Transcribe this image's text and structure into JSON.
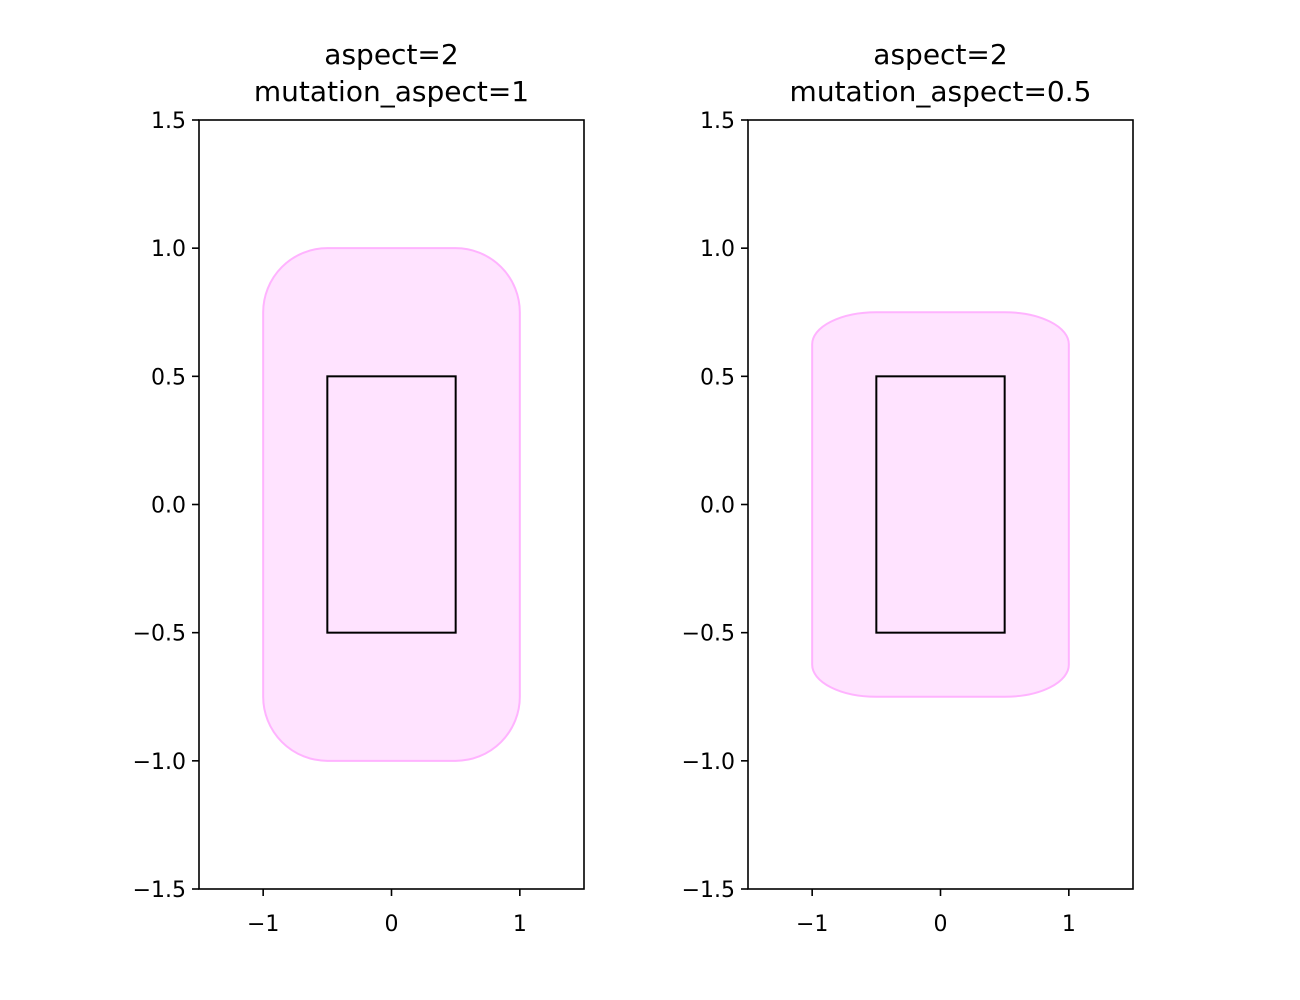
{
  "chart_data": [
    {
      "type": "diagram",
      "title": "aspect=2\nmutation_aspect=1",
      "title_lines": [
        "aspect=2",
        "mutation_aspect=1"
      ],
      "xlim": [
        -1.5,
        1.5
      ],
      "ylim": [
        -1.5,
        1.5
      ],
      "xticks": [
        -1,
        0,
        1
      ],
      "xtick_labels": [
        "−1",
        "0",
        "1"
      ],
      "yticks": [
        -1.5,
        -1.0,
        -0.5,
        0.0,
        0.5,
        1.0,
        1.5
      ],
      "ytick_labels": [
        "−1.5",
        "−1.0",
        "−0.5",
        "0.0",
        "0.5",
        "1.0",
        "1.5"
      ],
      "inner_rect": {
        "x0": -0.5,
        "y0": -0.5,
        "x1": 0.5,
        "y1": 0.5,
        "edgecolor": "#000000"
      },
      "fancy_box": {
        "x0": -1.0,
        "y0": -1.0,
        "x1": 1.0,
        "y1": 1.0,
        "facecolor": "#ffe3ff",
        "edgecolor": "#ffb3ff"
      }
    },
    {
      "type": "diagram",
      "title": "aspect=2\nmutation_aspect=0.5",
      "title_lines": [
        "aspect=2",
        "mutation_aspect=0.5"
      ],
      "xlim": [
        -1.5,
        1.5
      ],
      "ylim": [
        -1.5,
        1.5
      ],
      "xticks": [
        -1,
        0,
        1
      ],
      "xtick_labels": [
        "−1",
        "0",
        "1"
      ],
      "yticks": [
        -1.5,
        -1.0,
        -0.5,
        0.0,
        0.5,
        1.0,
        1.5
      ],
      "ytick_labels": [
        "−1.5",
        "−1.0",
        "−0.5",
        "0.0",
        "0.5",
        "1.0",
        "1.5"
      ],
      "inner_rect": {
        "x0": -0.5,
        "y0": -0.5,
        "x1": 0.5,
        "y1": 0.5,
        "edgecolor": "#000000"
      },
      "fancy_box": {
        "x0": -1.0,
        "y0": -0.75,
        "x1": 1.0,
        "y1": 0.75,
        "facecolor": "#ffe3ff",
        "edgecolor": "#ffb3ff"
      }
    }
  ]
}
